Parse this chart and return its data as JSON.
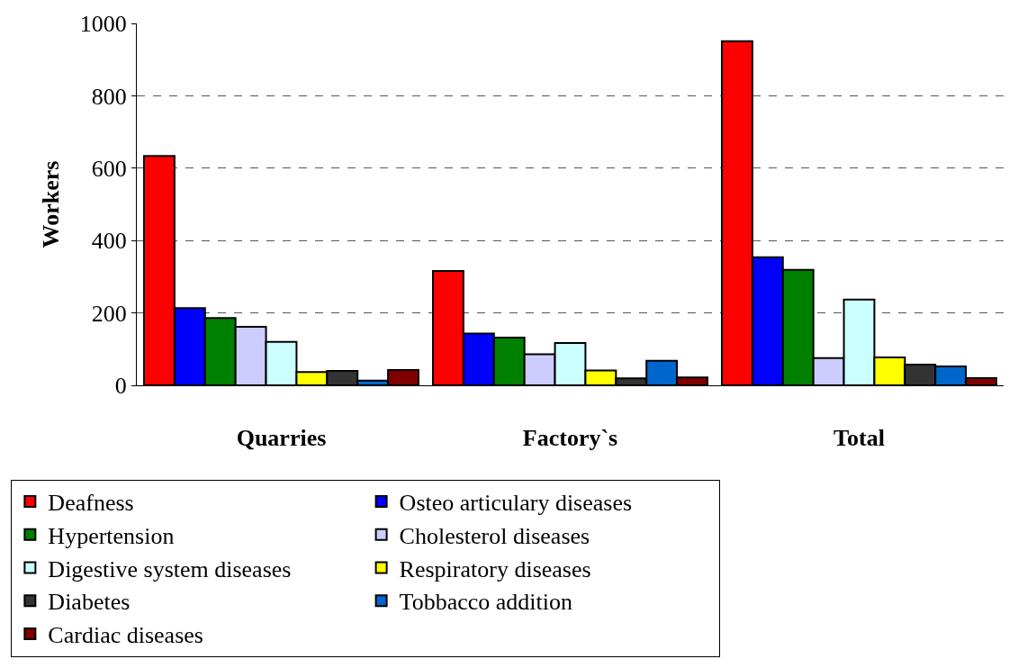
{
  "chart_data": {
    "type": "bar",
    "ylabel": "Workers",
    "categories": [
      "Quarries",
      "Factory`s",
      "Total"
    ],
    "series": [
      {
        "name": "Deafness",
        "color": "#ff0000",
        "values": [
          634,
          316,
          951
        ]
      },
      {
        "name": "Osteo articulary diseases",
        "color": "#0000ff",
        "values": [
          213,
          143,
          354
        ]
      },
      {
        "name": "Hypertension",
        "color": "#008000",
        "values": [
          186,
          132,
          319
        ]
      },
      {
        "name": "Cholesterol diseases",
        "color": "#ccccff",
        "values": [
          162,
          86,
          75
        ]
      },
      {
        "name": "Digestive system diseases",
        "color": "#ccffff",
        "values": [
          120,
          117,
          237
        ]
      },
      {
        "name": "Respiratory diseases",
        "color": "#ffff00",
        "values": [
          37,
          41,
          77
        ]
      },
      {
        "name": "Diabetes",
        "color": "#333333",
        "values": [
          40,
          19,
          57
        ]
      },
      {
        "name": "Tobbacco addition",
        "color": "#0066cc",
        "values": [
          13,
          68,
          52
        ]
      },
      {
        "name": "Cardiac diseases",
        "color": "#800000",
        "values": [
          42,
          22,
          20
        ]
      }
    ],
    "ylim": [
      0,
      1000
    ],
    "yticks": [
      0,
      200,
      400,
      600,
      800,
      1000
    ],
    "grid": "y",
    "legend": "bottom"
  }
}
